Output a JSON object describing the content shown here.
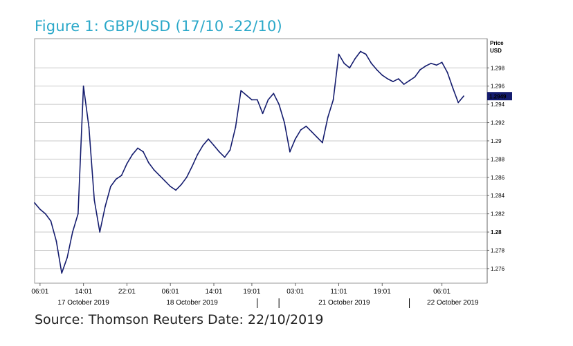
{
  "figure": {
    "title": "Figure 1: GBP/USD (17/10 -22/10)",
    "source": "Source: Thomson Reuters Date: 22/10/2019"
  },
  "chart_data": {
    "type": "line",
    "axis_title_line1": "Price",
    "axis_title_line2": "USD",
    "y_axis_side": "right",
    "ylim": [
      1.2744,
      1.3012
    ],
    "yticks": [
      {
        "value": 1.276,
        "label": "1.276",
        "bold": false
      },
      {
        "value": 1.278,
        "label": "1.278",
        "bold": false
      },
      {
        "value": 1.28,
        "label": "1.28",
        "bold": true
      },
      {
        "value": 1.282,
        "label": "1.282",
        "bold": false
      },
      {
        "value": 1.284,
        "label": "1.284",
        "bold": false
      },
      {
        "value": 1.286,
        "label": "1.286",
        "bold": false
      },
      {
        "value": 1.288,
        "label": "1.288",
        "bold": false
      },
      {
        "value": 1.29,
        "label": "1.29",
        "bold": false
      },
      {
        "value": 1.292,
        "label": "1.292",
        "bold": false
      },
      {
        "value": 1.294,
        "label": "1.294",
        "bold": false
      },
      {
        "value": 1.296,
        "label": "1.296",
        "bold": false
      },
      {
        "value": 1.298,
        "label": "1.298",
        "bold": false
      }
    ],
    "last_price": {
      "value": 1.2949,
      "label": "1.2949"
    },
    "xticks": [
      "06:01",
      "14:01",
      "22:01",
      "06:01",
      "14:01",
      "19:01",
      "03:01",
      "11:01",
      "19:01",
      "06:01"
    ],
    "xtick_index": [
      1,
      9,
      17,
      25,
      33,
      40,
      48,
      56,
      64,
      75
    ],
    "date_labels": [
      "17 October 2019",
      "18 October 2019",
      "21 October 2019",
      "22 October 2019"
    ],
    "date_label_index": [
      9,
      29,
      57,
      77
    ],
    "date_separators_index": [
      41,
      45,
      69
    ],
    "x_count": 80,
    "grid": true,
    "colors": {
      "line": "#141c6e",
      "grid": "#c8c8c8",
      "title": "#2aa8c9",
      "label_bg": "#141c6e"
    },
    "series": [
      {
        "values": [
          1.2832,
          1.2825,
          1.282,
          1.2812,
          1.279,
          1.2755,
          1.2772,
          1.28,
          1.282,
          1.296,
          1.2915,
          1.2835,
          1.28,
          1.2828,
          1.285,
          1.2858,
          1.2862,
          1.2875,
          1.2885,
          1.2892,
          1.2888,
          1.2876,
          1.2868,
          1.2862,
          1.2856,
          1.285,
          1.2846,
          1.2852,
          1.286,
          1.2872,
          1.2885,
          1.2895,
          1.2902,
          1.2895,
          1.2888,
          1.2882,
          1.289,
          1.2915,
          1.2955,
          1.295,
          1.2945,
          1.2945,
          1.293,
          1.2945,
          1.2952,
          1.294,
          1.292,
          1.2888,
          1.2902,
          1.2912,
          1.2916,
          1.291,
          1.2904,
          1.2898,
          1.2926,
          1.2945,
          1.2995,
          1.2985,
          1.298,
          1.299,
          1.2998,
          1.2995,
          1.2985,
          1.2978,
          1.2972,
          1.2968,
          1.2965,
          1.2968,
          1.2962,
          1.2966,
          1.297,
          1.2978,
          1.2982,
          1.2985,
          1.2983,
          1.2986,
          1.2975,
          1.2958,
          1.2942,
          1.2949
        ]
      }
    ]
  }
}
